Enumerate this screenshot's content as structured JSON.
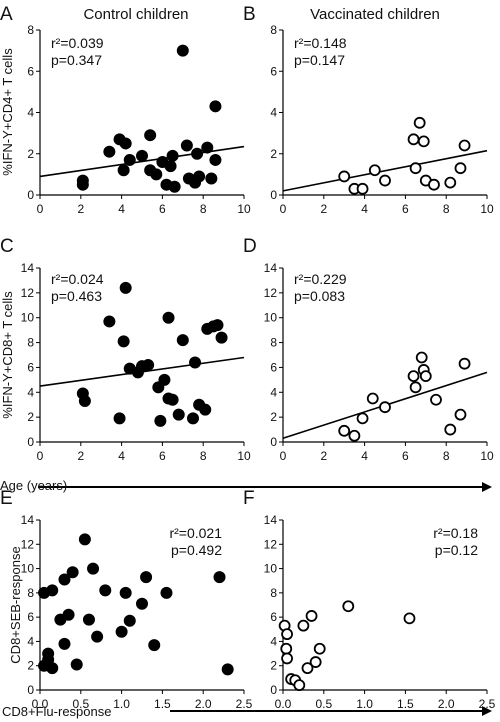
{
  "figure": {
    "col_titles": [
      "Control children",
      "Vaccinated children"
    ],
    "age_label": "Age (years)",
    "flu_label": "CD8+Flu-response"
  },
  "chart_data": [
    {
      "panel": "A",
      "type": "scatter",
      "marker": "filled",
      "title": "Control children",
      "ylabel": "%IFN-Y+CD4+ T cells",
      "xlim": [
        0,
        10
      ],
      "ylim": [
        0,
        8
      ],
      "xticks": [
        0,
        2,
        4,
        6,
        8,
        10
      ],
      "yticks": [
        0,
        2,
        4,
        6,
        8
      ],
      "r2_label": "2",
      "r2_value": "=0.039",
      "p_text": "p=0.347",
      "x": [
        2.1,
        2.1,
        3.4,
        3.9,
        4.1,
        4.2,
        4.4,
        5.0,
        5.4,
        5.4,
        5.7,
        6.0,
        6.2,
        6.4,
        6.5,
        6.6,
        7.0,
        7.2,
        7.3,
        7.6,
        7.7,
        7.8,
        8.2,
        8.4,
        8.6,
        8.6
      ],
      "y": [
        0.7,
        0.5,
        2.1,
        2.7,
        1.2,
        2.5,
        1.7,
        1.9,
        2.9,
        1.2,
        1.0,
        1.6,
        0.5,
        1.4,
        1.9,
        0.4,
        7.0,
        2.4,
        0.8,
        0.6,
        2.0,
        0.9,
        2.3,
        0.8,
        4.3,
        1.7
      ],
      "fit": {
        "x": [
          0,
          10
        ],
        "y": [
          0.9,
          2.35
        ]
      }
    },
    {
      "panel": "B",
      "type": "scatter",
      "marker": "open",
      "title": "Vaccinated children",
      "ylabel": "",
      "xlim": [
        0,
        10
      ],
      "ylim": [
        0,
        8
      ],
      "xticks": [
        0,
        2,
        4,
        6,
        8,
        10
      ],
      "yticks": [
        0,
        2,
        4,
        6,
        8
      ],
      "r2_label": "",
      "r2_value": "r²=0.148",
      "p_text": "p=0.147",
      "x": [
        3.0,
        3.5,
        3.9,
        4.5,
        5.0,
        6.4,
        6.5,
        6.7,
        6.9,
        7.0,
        7.4,
        8.2,
        8.7,
        8.9
      ],
      "y": [
        0.9,
        0.3,
        0.3,
        1.2,
        0.7,
        2.7,
        1.3,
        3.5,
        2.6,
        0.7,
        0.5,
        0.6,
        1.3,
        2.4
      ],
      "fit": {
        "x": [
          0,
          10
        ],
        "y": [
          0.2,
          2.15
        ]
      }
    },
    {
      "panel": "C",
      "type": "scatter",
      "marker": "filled",
      "title": "",
      "ylabel": "%IFN-Y+CD8+ T cells",
      "xlim": [
        0,
        10
      ],
      "ylim": [
        0,
        14
      ],
      "xticks": [
        0,
        2,
        4,
        6,
        8,
        10
      ],
      "yticks": [
        0,
        2,
        4,
        6,
        8,
        10,
        12,
        14
      ],
      "r2_label": "",
      "r2_value": "r²=0.024",
      "p_text": "p=0.463",
      "x": [
        2.1,
        2.2,
        3.4,
        3.9,
        4.1,
        4.2,
        4.4,
        4.8,
        5.0,
        5.3,
        5.8,
        5.9,
        6.1,
        6.3,
        6.3,
        6.5,
        6.8,
        7.0,
        7.5,
        7.6,
        7.8,
        8.1,
        8.2,
        8.5,
        8.7,
        8.9
      ],
      "y": [
        3.9,
        3.3,
        9.7,
        1.9,
        8.1,
        12.4,
        5.9,
        5.6,
        6.1,
        6.2,
        4.4,
        1.7,
        5.0,
        3.5,
        10.0,
        3.4,
        2.2,
        8.2,
        1.9,
        6.4,
        3.0,
        2.6,
        9.1,
        9.3,
        9.4,
        8.4
      ],
      "fit": {
        "x": [
          0,
          10
        ],
        "y": [
          4.5,
          6.8
        ]
      }
    },
    {
      "panel": "D",
      "type": "scatter",
      "marker": "open",
      "title": "",
      "ylabel": "",
      "xlim": [
        0,
        10
      ],
      "ylim": [
        0,
        14
      ],
      "xticks": [
        0,
        2,
        4,
        6,
        8,
        10
      ],
      "yticks": [
        0,
        2,
        4,
        6,
        8,
        10,
        12,
        14
      ],
      "r2_label": "",
      "r2_value": "r²=0.229",
      "p_text": "p=0.083",
      "x": [
        3.0,
        3.5,
        3.9,
        4.4,
        5.0,
        6.4,
        6.5,
        6.8,
        6.9,
        7.0,
        7.5,
        8.2,
        8.7,
        8.9
      ],
      "y": [
        0.9,
        0.5,
        1.9,
        3.5,
        2.8,
        5.3,
        4.4,
        6.8,
        5.8,
        5.3,
        3.4,
        1.0,
        2.2,
        6.3
      ],
      "fit": {
        "x": [
          0,
          10
        ],
        "y": [
          0.3,
          5.6
        ]
      }
    },
    {
      "panel": "E",
      "type": "scatter",
      "marker": "filled",
      "title": "",
      "ylabel": "CD8+SEB-response",
      "xlim": [
        0,
        2.5
      ],
      "ylim": [
        0,
        14
      ],
      "xticks": [
        "0.0",
        "0.5",
        "1.0",
        "1.5",
        "2.0",
        "2.5"
      ],
      "yticks": [
        0,
        2,
        4,
        6,
        8,
        10,
        12,
        14
      ],
      "r2_label": "",
      "r2_value": "r²=0.021",
      "p_text": "p=0.492",
      "x": [
        0.05,
        0.05,
        0.1,
        0.1,
        0.15,
        0.15,
        0.25,
        0.3,
        0.3,
        0.35,
        0.4,
        0.45,
        0.55,
        0.6,
        0.65,
        0.7,
        0.8,
        1.0,
        1.05,
        1.1,
        1.25,
        1.3,
        1.4,
        1.55,
        2.2,
        2.3
      ],
      "y": [
        2.0,
        8.0,
        2.5,
        3.0,
        1.8,
        8.2,
        5.8,
        9.1,
        3.8,
        6.2,
        9.7,
        2.1,
        12.4,
        5.8,
        10.0,
        4.4,
        8.2,
        4.8,
        8.0,
        5.7,
        7.1,
        9.3,
        3.7,
        8.0,
        9.3,
        1.7
      ],
      "fit": null
    },
    {
      "panel": "F",
      "type": "scatter",
      "marker": "open",
      "title": "",
      "ylabel": "",
      "xlim": [
        0,
        2.5
      ],
      "ylim": [
        0,
        14
      ],
      "xticks": [
        "0.0",
        "0.5",
        "1.0",
        "1.5",
        "2.0",
        "2.5"
      ],
      "yticks": [
        0,
        2,
        4,
        6,
        8,
        10,
        12,
        14
      ],
      "r2_label": "",
      "r2_value": "r²=0.18",
      "p_text": "p=0.12",
      "x": [
        0.02,
        0.04,
        0.05,
        0.05,
        0.1,
        0.15,
        0.2,
        0.25,
        0.3,
        0.35,
        0.4,
        0.45,
        0.8,
        1.55
      ],
      "y": [
        5.3,
        3.4,
        4.6,
        2.6,
        0.9,
        0.8,
        0.4,
        5.3,
        1.8,
        6.1,
        2.3,
        3.4,
        6.9,
        5.9
      ],
      "fit": null
    }
  ]
}
